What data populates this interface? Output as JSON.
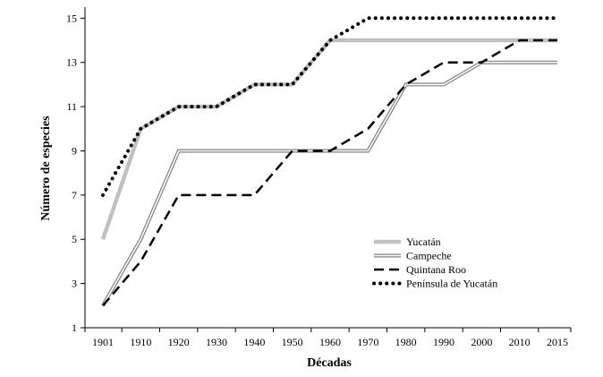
{
  "chart_data": {
    "type": "line",
    "xlabel": "Décadas",
    "ylabel": "Número de especies",
    "x": [
      "1901",
      "1910",
      "1920",
      "1930",
      "1940",
      "1950",
      "1960",
      "1970",
      "1980",
      "1990",
      "2000",
      "2010",
      "2015"
    ],
    "ylim": [
      1,
      15.5
    ],
    "yticks": [
      1,
      3,
      5,
      7,
      9,
      11,
      13,
      15
    ],
    "grid": false,
    "legend": "bottom-right",
    "series": [
      {
        "name": "Yucatán",
        "style": "thick-gray",
        "color": "#c0c0c0",
        "values": [
          5,
          10,
          11,
          11,
          12,
          12,
          14,
          14,
          14,
          14,
          14,
          14,
          14
        ]
      },
      {
        "name": "Campeche",
        "style": "double",
        "color": "#808080",
        "values": [
          2,
          5,
          9,
          9,
          9,
          9,
          9,
          9,
          12,
          12,
          13,
          13,
          13
        ]
      },
      {
        "name": "Quintana Roo",
        "style": "dashed",
        "color": "#000000",
        "values": [
          2,
          4,
          7,
          7,
          7,
          9,
          9,
          10,
          12,
          13,
          13,
          14,
          14
        ]
      },
      {
        "name": "Península de Yucatán",
        "style": "dotted",
        "color": "#000000",
        "values": [
          7,
          10,
          11,
          11,
          12,
          12,
          14,
          15,
          15,
          15,
          15,
          15,
          15
        ]
      }
    ]
  }
}
